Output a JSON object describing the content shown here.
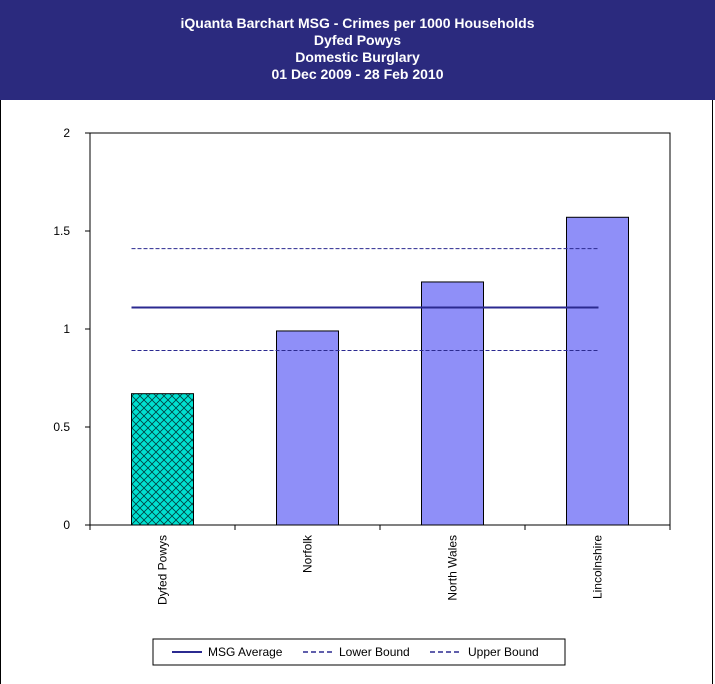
{
  "header": {
    "line1": "iQuanta Barchart MSG - Crimes per 1000 Households",
    "line2": "Dyfed Powys",
    "line3": "Domestic Burglary",
    "line4": "01 Dec 2009 - 28 Feb 2010"
  },
  "chart_data": {
    "type": "bar",
    "categories": [
      "Dyfed Powys",
      "Norfolk",
      "North Wales",
      "Lincolnshire"
    ],
    "values": [
      0.67,
      0.99,
      1.24,
      1.57
    ],
    "highlight_index": 0,
    "highlight_color": "#00e0d0",
    "bar_color": "#8f8ff8",
    "ylim": [
      0,
      2
    ],
    "yticks": [
      "0",
      "0.5",
      "1",
      "1.5",
      "2"
    ],
    "ytick_values": [
      0,
      0.5,
      1,
      1.5,
      2
    ],
    "reference_lines": [
      {
        "name": "MSG Average",
        "value": 1.11,
        "style": "solid",
        "color": "#2b2a90"
      },
      {
        "name": "Lower Bound",
        "value": 0.89,
        "style": "dashed",
        "color": "#2b2a90"
      },
      {
        "name": "Upper Bound",
        "value": 1.41,
        "style": "dashed",
        "color": "#2b2a90"
      }
    ],
    "legend": [
      "MSG Average",
      "Lower Bound",
      "Upper Bound"
    ],
    "legend_position": "bottom",
    "grid": false
  }
}
